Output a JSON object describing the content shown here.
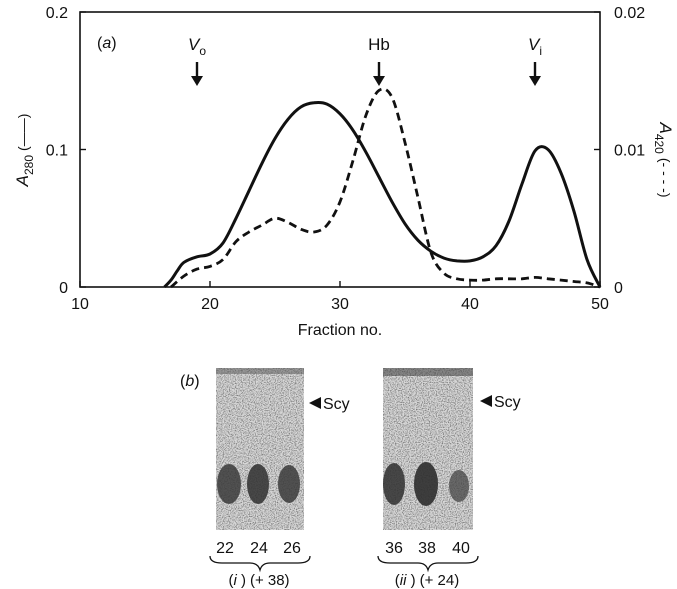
{
  "panel_a": {
    "label_open": "(",
    "label_letter": "a",
    "label_close": ")",
    "x_axis_label": "Fraction no.",
    "y_left_label_main": "A",
    "y_left_label_sub": "280",
    "y_left_label_line": "(——)",
    "y_right_label_main": "A",
    "y_right_label_sub": "420",
    "y_right_label_line": "(- - - -)",
    "markers": [
      {
        "name": "vo",
        "main": "V",
        "sub": "o",
        "fraction": 19
      },
      {
        "name": "hb",
        "main": "Hb",
        "sub": "",
        "fraction": 33
      },
      {
        "name": "vi",
        "main": "V",
        "sub": "i",
        "fraction": 45
      }
    ]
  },
  "chart_data": {
    "type": "line",
    "xlim": [
      10,
      50
    ],
    "ylim_left": [
      0,
      0.2
    ],
    "ylim_right": [
      0,
      0.02
    ],
    "x_ticks": [
      10,
      20,
      30,
      40,
      50
    ],
    "y_left_ticks": [
      "0",
      "0.1",
      "0.2"
    ],
    "y_right_ticks": [
      "0",
      "0.01",
      "0.02"
    ],
    "xlabel": "Fraction no.",
    "ylabel_left": "A280",
    "ylabel_right": "A420",
    "series": [
      {
        "style": "solid",
        "axis": "left",
        "x": [
          16.5,
          17,
          17.5,
          18,
          19,
          20,
          21,
          22,
          23,
          24,
          25,
          26,
          27,
          28,
          29,
          30,
          31,
          32,
          33,
          34,
          35,
          36,
          37,
          38,
          39,
          40,
          41,
          42,
          43,
          44,
          45,
          46,
          47,
          48,
          49,
          50
        ],
        "y": [
          0,
          0.005,
          0.012,
          0.018,
          0.022,
          0.024,
          0.032,
          0.05,
          0.07,
          0.09,
          0.108,
          0.122,
          0.131,
          0.134,
          0.133,
          0.126,
          0.114,
          0.098,
          0.08,
          0.062,
          0.046,
          0.034,
          0.026,
          0.021,
          0.019,
          0.019,
          0.022,
          0.03,
          0.048,
          0.075,
          0.099,
          0.1,
          0.083,
          0.055,
          0.02,
          0
        ]
      },
      {
        "style": "dashed",
        "axis": "right",
        "x": [
          17,
          18,
          19,
          20,
          21,
          22,
          23,
          24,
          25,
          26,
          27,
          28,
          29,
          30,
          31,
          32,
          33,
          34,
          35,
          36,
          37,
          38,
          39,
          40,
          41,
          42,
          43,
          44,
          45,
          46,
          47,
          48,
          49,
          50
        ],
        "y": [
          0,
          0.0008,
          0.0013,
          0.0015,
          0.002,
          0.0033,
          0.004,
          0.0045,
          0.005,
          0.0047,
          0.0042,
          0.004,
          0.0045,
          0.0062,
          0.0092,
          0.0125,
          0.0143,
          0.0138,
          0.0105,
          0.0065,
          0.0025,
          0.001,
          0.0006,
          0.0005,
          0.0005,
          0.0006,
          0.0006,
          0.0006,
          0.0007,
          0.0006,
          0.0005,
          0.0004,
          0.0003,
          0
        ]
      }
    ]
  },
  "panel_b": {
    "label_open": "(",
    "label_letter": "b",
    "label_close": ")",
    "gels": [
      {
        "name": "gel-i",
        "band_label": "Scy",
        "lanes": [
          "22",
          "24",
          "26"
        ],
        "sample_numeral": "i",
        "sample_note": "(+ 38)"
      },
      {
        "name": "gel-ii",
        "band_label": "Scy",
        "lanes": [
          "36",
          "38",
          "40"
        ],
        "sample_numeral": "ii",
        "sample_note": "(+ 24)"
      }
    ]
  }
}
